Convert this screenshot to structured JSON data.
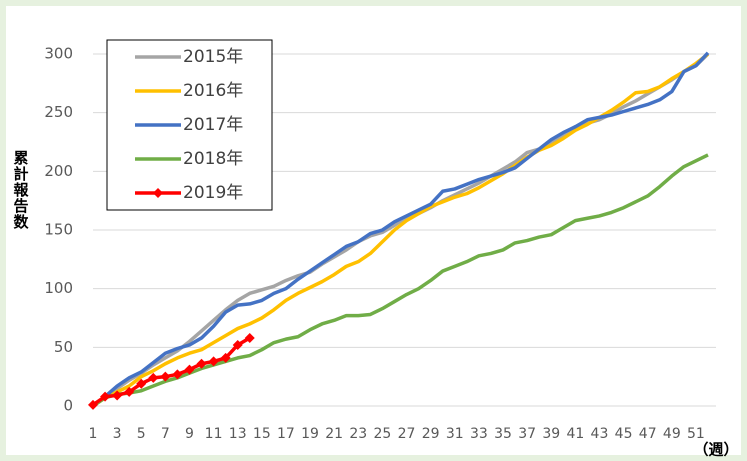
{
  "chart_data": {
    "type": "line",
    "y_label": "累計報告数",
    "x_label": "（週）",
    "x": [
      1,
      2,
      3,
      4,
      5,
      6,
      7,
      8,
      9,
      10,
      11,
      12,
      13,
      14,
      15,
      16,
      17,
      18,
      19,
      20,
      21,
      22,
      23,
      24,
      25,
      26,
      27,
      28,
      29,
      30,
      31,
      32,
      33,
      34,
      35,
      36,
      37,
      38,
      39,
      40,
      41,
      42,
      43,
      44,
      45,
      46,
      47,
      48,
      49,
      50,
      51,
      52
    ],
    "xlim": [
      1,
      52
    ],
    "xticks": [
      1,
      3,
      5,
      7,
      9,
      11,
      13,
      15,
      17,
      19,
      21,
      23,
      25,
      27,
      29,
      31,
      33,
      35,
      37,
      39,
      41,
      43,
      45,
      47,
      49,
      51
    ],
    "ylim": [
      0,
      300
    ],
    "yticks": [
      0,
      50,
      100,
      150,
      200,
      250,
      300
    ],
    "grid": true,
    "legend": "upper left",
    "series": [
      {
        "name": "2015年",
        "color": "#a5a5a5",
        "values": [
          0,
          8,
          15,
          22,
          28,
          35,
          41,
          47,
          55,
          64,
          73,
          82,
          90,
          96,
          99,
          102,
          107,
          111,
          114,
          121,
          127,
          133,
          140,
          145,
          148,
          154,
          161,
          164,
          169,
          175,
          180,
          185,
          190,
          196,
          202,
          208,
          216,
          219,
          224,
          231,
          238,
          241,
          244,
          249,
          255,
          260,
          266,
          272,
          278,
          285,
          290,
          300
        ]
      },
      {
        "name": "2016年",
        "color": "#ffc000",
        "values": [
          0,
          7,
          12,
          17,
          25,
          30,
          36,
          41,
          45,
          48,
          54,
          60,
          66,
          70,
          75,
          82,
          90,
          96,
          101,
          106,
          112,
          119,
          123,
          130,
          140,
          150,
          158,
          164,
          170,
          174,
          178,
          181,
          186,
          192,
          198,
          205,
          212,
          218,
          222,
          228,
          235,
          240,
          246,
          252,
          259,
          267,
          268,
          272,
          279,
          285,
          292,
          300
        ]
      },
      {
        "name": "2017年",
        "color": "#4472c4",
        "values": [
          0,
          8,
          17,
          24,
          29,
          37,
          45,
          49,
          52,
          58,
          68,
          80,
          86,
          87,
          90,
          96,
          100,
          108,
          115,
          122,
          129,
          136,
          140,
          147,
          150,
          157,
          162,
          167,
          172,
          183,
          185,
          189,
          193,
          196,
          199,
          203,
          211,
          219,
          227,
          233,
          238,
          244,
          246,
          248,
          251,
          254,
          257,
          261,
          268,
          285,
          290,
          301
        ]
      },
      {
        "name": "2018年",
        "color": "#70ad47",
        "values": [
          0,
          7,
          10,
          11,
          13,
          17,
          21,
          24,
          28,
          32,
          35,
          38,
          41,
          43,
          48,
          54,
          57,
          59,
          65,
          70,
          73,
          77,
          77,
          78,
          83,
          89,
          95,
          100,
          107,
          115,
          119,
          123,
          128,
          130,
          133,
          139,
          141,
          144,
          146,
          152,
          158,
          160,
          162,
          165,
          169,
          174,
          179,
          187,
          196,
          204,
          209,
          214
        ]
      },
      {
        "name": "2019年",
        "color": "#ff0000",
        "marker": "diamond",
        "values": [
          1,
          8,
          9,
          12,
          19,
          24,
          25,
          27,
          31,
          36,
          38,
          41,
          52,
          58,
          null,
          null,
          null,
          null,
          null,
          null,
          null,
          null,
          null,
          null,
          null,
          null,
          null,
          null,
          null,
          null,
          null,
          null,
          null,
          null,
          null,
          null,
          null,
          null,
          null,
          null,
          null,
          null,
          null,
          null,
          null,
          null,
          null,
          null,
          null,
          null,
          null,
          null
        ]
      }
    ]
  }
}
